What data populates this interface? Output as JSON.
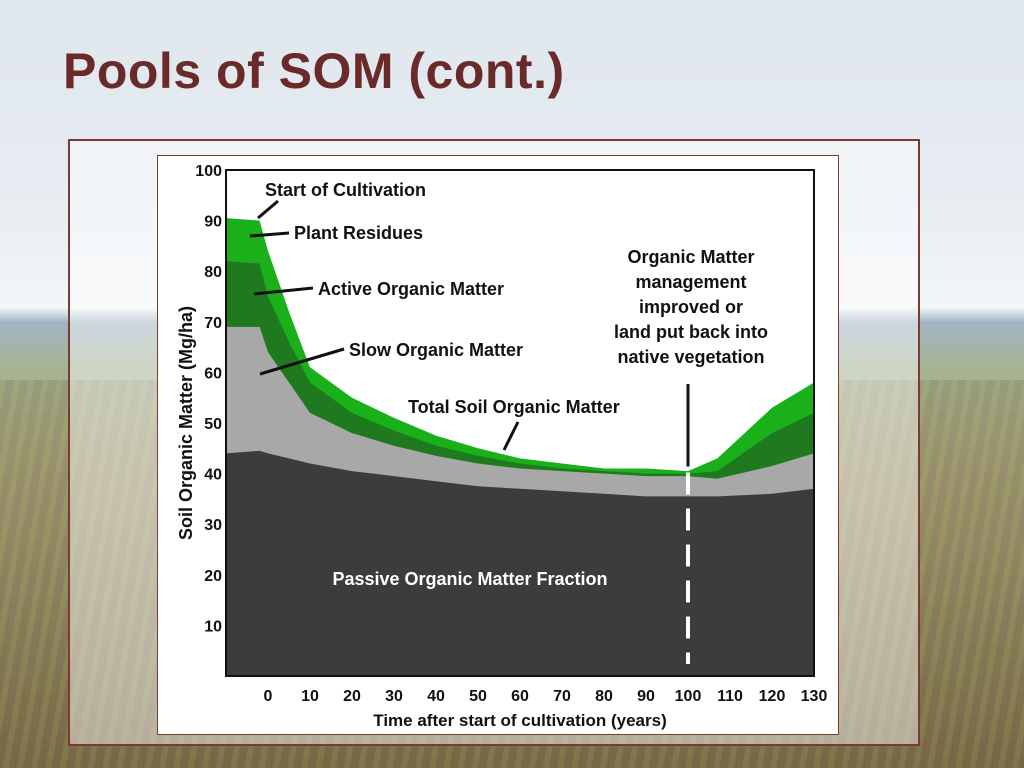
{
  "slide": {
    "title": "Pools of SOM (cont.)"
  },
  "chart_data": {
    "type": "area",
    "xlabel": "Time after start of cultivation (years)",
    "ylabel": "Soil Organic Matter (Mg/ha)",
    "ylim": [
      0,
      100
    ],
    "xlim": [
      -10,
      130
    ],
    "x_ticks": [
      0,
      10,
      20,
      30,
      40,
      50,
      60,
      70,
      80,
      90,
      100,
      110,
      120,
      130
    ],
    "y_ticks": [
      10,
      20,
      30,
      40,
      50,
      60,
      70,
      80,
      90,
      100
    ],
    "x": [
      -10,
      -2,
      0,
      5,
      10,
      20,
      30,
      40,
      50,
      60,
      70,
      80,
      90,
      100,
      107,
      120,
      130
    ],
    "series": [
      {
        "name": "Passive Organic Matter Fraction",
        "color": "#3c3c3c",
        "values": [
          44,
          44.5,
          44,
          43,
          42,
          40.5,
          39.5,
          38.5,
          37.5,
          37,
          36.5,
          36,
          35.5,
          35.5,
          35.5,
          36,
          37
        ]
      },
      {
        "name": "Slow Organic Matter",
        "color": "#a8a8a8",
        "values": [
          69,
          69,
          64,
          58,
          52,
          48,
          45.5,
          43.5,
          42,
          41,
          40.5,
          40,
          39.5,
          39.5,
          39,
          41.5,
          44
        ]
      },
      {
        "name": "Active Organic Matter",
        "color": "#1f7a1f",
        "values": [
          82,
          81.5,
          75,
          66,
          58,
          52,
          48.5,
          45.5,
          43.5,
          42,
          41,
          40.5,
          40,
          40,
          40.5,
          48,
          52
        ]
      },
      {
        "name": "Plant Residues",
        "color": "#19b019",
        "values": [
          90.5,
          90,
          84,
          72,
          61,
          55,
          51,
          47.5,
          45,
          43,
          42,
          41,
          41,
          40.5,
          43,
          53,
          58
        ]
      }
    ],
    "annotations": {
      "start_of_cultivation": "Start of Cultivation",
      "plant_residues": "Plant Residues",
      "active_organic_matter": "Active Organic Matter",
      "slow_organic_matter": "Slow Organic Matter",
      "total_soil_organic_matter": "Total Soil Organic Matter",
      "passive_fraction": "Passive Organic Matter Fraction",
      "management_note": [
        "Organic Matter",
        "management",
        "improved or",
        "land put back into",
        "native vegetation"
      ]
    },
    "marker_x": 100
  }
}
